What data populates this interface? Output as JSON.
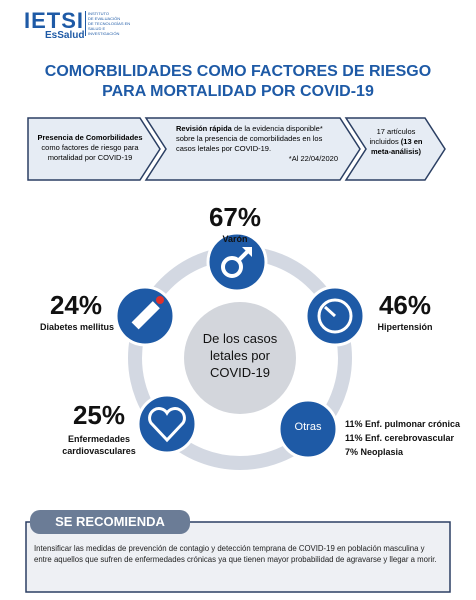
{
  "header": {
    "logo": "IETSI",
    "org": "EsSalud",
    "institute": [
      "INSTITUTO",
      "DE EVALUACIÓN",
      "DE TECNOLOGÍAS EN",
      "SALUD E",
      "INVESTIGACIÓN"
    ]
  },
  "title": [
    "COMORBILIDADES COMO FACTORES DE RIESGO",
    "PARA MORTALIDAD POR COVID-19"
  ],
  "steps": [
    {
      "bold": "Presencia de Comorbilidades",
      "text": "como factores de riesgo para mortalidad por COVID-19"
    },
    {
      "bold": "Revisión rápida",
      "text": "de la evidencia disponible* sobre la presencia de comorbilidades en los casos letales por COVID-19.",
      "note": "*Al 22/04/2020"
    },
    {
      "text": "17 artículos incluidos",
      "bold": "(13 en meta-análisis)"
    }
  ],
  "center": [
    "De los casos",
    "letales por",
    "COVID-19"
  ],
  "factors": [
    {
      "percent": "67%",
      "label": "Varón"
    },
    {
      "percent": "24%",
      "label": "Diabetes mellitus"
    },
    {
      "percent": "46%",
      "label": "Hipertensión"
    },
    {
      "percent": "25%",
      "label": "Enfermedades cardiovasculares"
    }
  ],
  "others": {
    "label": "Otras",
    "items": [
      "11% Enf. pulmonar crónica",
      "11% Enf. cerebrovascular",
      "7% Neoplasia"
    ]
  },
  "recommendation": {
    "title": "SE RECOMIENDA",
    "text": "Intensificar las medidas de prevención de contagio y detección temprana de COVID-19 en población masculina y entre aquellos que sufren de enfermedades crónicas ya que tienen mayor probabilidad de agravarse y llegar a morir."
  }
}
